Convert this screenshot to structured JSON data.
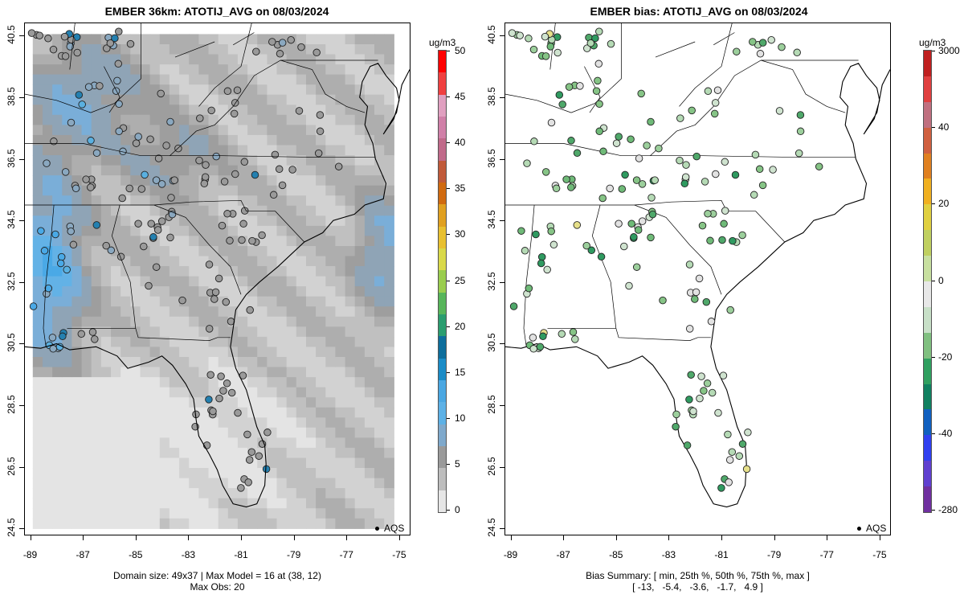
{
  "left": {
    "title": "EMBER 36km: ATOTIJ_AVG on 08/03/2024",
    "colorbar_unit": "ug/m3",
    "colorbar_labels": [
      "0",
      "5",
      "10",
      "15",
      "20",
      "25",
      "30",
      "35",
      "40",
      "45",
      "50"
    ],
    "legend_label": "AQS",
    "footer_line1": "Domain size: 49x37 | Max Model = 16 at (38, 12)",
    "footer_line2": "Max Obs: 20"
  },
  "right": {
    "title": "EMBER bias: ATOTIJ_AVG on 08/03/2024",
    "colorbar_unit": "ug/m3",
    "colorbar_labels": [
      "3000",
      "40",
      "20",
      "0",
      "-20",
      "-40",
      "-280"
    ],
    "legend_label": "AQS",
    "footer_line1": "Bias Summary: [ min, 25th %, 50th %, 75th %, max ]",
    "footer_line2": "[ -13,   -5.4,   -3.6,   -1.7,   4.9 ]"
  },
  "x_ticks": [
    "-89",
    "-87",
    "-85",
    "-83",
    "-81",
    "-79",
    "-77",
    "-75"
  ],
  "y_ticks": [
    "24.5",
    "26.5",
    "28.5",
    "30.5",
    "32.5",
    "34.5",
    "36.5",
    "38.5",
    "40.5"
  ],
  "colors": {
    "left_scale": [
      "#e6e6e6",
      "#bdbdbd",
      "#9a9a9a",
      "#7fa9cc",
      "#5db1e6",
      "#4aa7e2",
      "#1a8cc7",
      "#0d6e9c",
      "#2a9d6f",
      "#57b55a",
      "#9acd4e",
      "#d9d94a",
      "#e8c030",
      "#e0a020",
      "#d06a10",
      "#c05a3a",
      "#c06a8a",
      "#d080a8",
      "#e0a0c0",
      "#f04040",
      "#ff0000"
    ],
    "right_scale": [
      "#7030a0",
      "#6040d0",
      "#3040f0",
      "#1060c0",
      "#108060",
      "#30a060",
      "#80c080",
      "#c8e0c8",
      "#e8e8e8",
      "#c8e0a0",
      "#c0d060",
      "#e0d040",
      "#f0b020",
      "#e08020",
      "#d06040",
      "#c07080",
      "#e04040",
      "#c02020"
    ]
  }
}
